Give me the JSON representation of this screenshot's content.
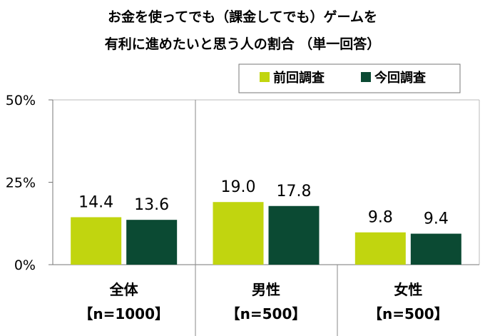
{
  "chart_data": {
    "type": "bar",
    "title": [
      "お金を使ってでも（課金してでも）ゲームを",
      "有利に進めたいと思う人の割合 （単一回答）"
    ],
    "categories": [
      "全体",
      "男性",
      "女性"
    ],
    "category_notes": [
      "【n=1000】",
      "【n=500】",
      "【n=500】"
    ],
    "series": [
      {
        "name": "前回調査",
        "values": [
          14.4,
          19.0,
          9.8
        ],
        "labels": [
          "14.4",
          "19.0",
          "9.8"
        ],
        "color": "#c1d50f"
      },
      {
        "name": "今回調査",
        "values": [
          13.6,
          17.8,
          9.4
        ],
        "labels": [
          "13.6",
          "17.8",
          "9.4"
        ],
        "color": "#0b4a33"
      }
    ],
    "ylim": [
      0,
      50
    ],
    "yticks": [
      0,
      25,
      50
    ],
    "ytick_labels": [
      "0%",
      "25%",
      "50%"
    ],
    "xlabel": "",
    "ylabel": "",
    "legend_position": "top-right",
    "grid": false
  }
}
